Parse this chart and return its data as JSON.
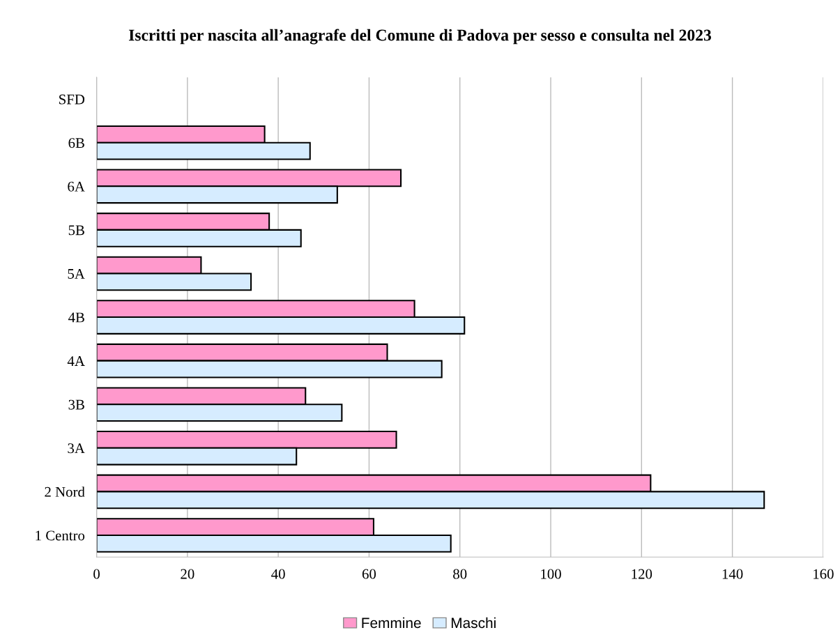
{
  "chart_data": {
    "type": "bar",
    "orientation": "horizontal",
    "title": "Iscritti per nascita all’anagrafe del Comune di Padova per sesso e consulta nel 2023",
    "categories": [
      "SFD",
      "6B",
      "6A",
      "5B",
      "5A",
      "4B",
      "4A",
      "3B",
      "3A",
      "2 Nord",
      "1 Centro"
    ],
    "series": [
      {
        "name": "Femmine",
        "color": "#ff99cc",
        "values": [
          0,
          37,
          67,
          38,
          23,
          70,
          64,
          46,
          66,
          122,
          61
        ]
      },
      {
        "name": "Maschi",
        "color": "#d6ecff",
        "values": [
          0,
          47,
          53,
          45,
          34,
          81,
          76,
          54,
          44,
          147,
          78
        ]
      }
    ],
    "xlim": [
      0,
      160
    ],
    "xticks": [
      0,
      20,
      40,
      60,
      80,
      100,
      120,
      140,
      160
    ],
    "grid": "x",
    "legend": "bottom"
  }
}
